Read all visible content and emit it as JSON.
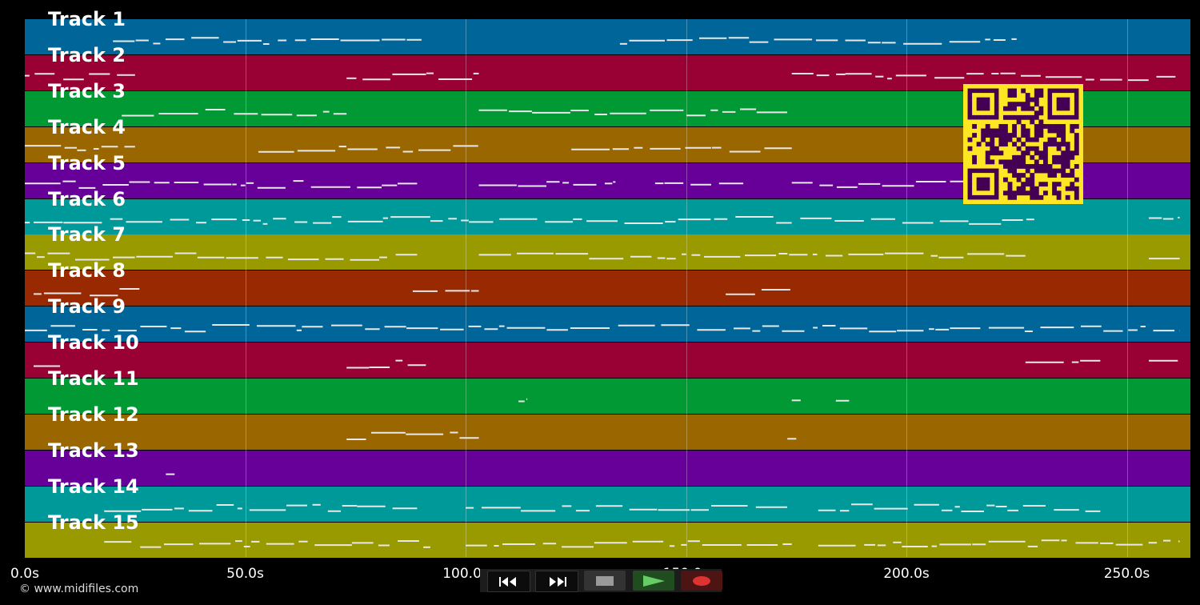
{
  "tracks": [
    {
      "label": "Track 1",
      "color": "#006699"
    },
    {
      "label": "Track 2",
      "color": "#990033"
    },
    {
      "label": "Track 3",
      "color": "#009933"
    },
    {
      "label": "Track 4",
      "color": "#996600"
    },
    {
      "label": "Track 5",
      "color": "#660099"
    },
    {
      "label": "Track 6",
      "color": "#009999"
    },
    {
      "label": "Track 7",
      "color": "#999900"
    },
    {
      "label": "Track 8",
      "color": "#992900"
    },
    {
      "label": "Track 9",
      "color": "#006699"
    },
    {
      "label": "Track 10",
      "color": "#990033"
    },
    {
      "label": "Track 11",
      "color": "#009933"
    },
    {
      "label": "Track 12",
      "color": "#996600"
    },
    {
      "label": "Track 13",
      "color": "#660099"
    },
    {
      "label": "Track 14",
      "color": "#009999"
    },
    {
      "label": "Track 15",
      "color": "#999900"
    }
  ],
  "timeline": {
    "ticks": [
      "0.0s",
      "50.0s",
      "100.0s",
      "150.0s",
      "200.0s",
      "250.0s"
    ]
  },
  "copyright": "© www.midifiles.com",
  "transport": {
    "rewind_icon": "rewind-icon",
    "fast_forward_icon": "fast-forward-icon",
    "stop_icon": "stop-icon",
    "play_icon": "play-icon",
    "record_icon": "record-icon",
    "play_color": "#66cc66",
    "record_color": "#dd3333"
  },
  "qr_code": {
    "icon": "qr-code-icon",
    "fg_color": "#440154",
    "bg_color": "#fde725"
  }
}
